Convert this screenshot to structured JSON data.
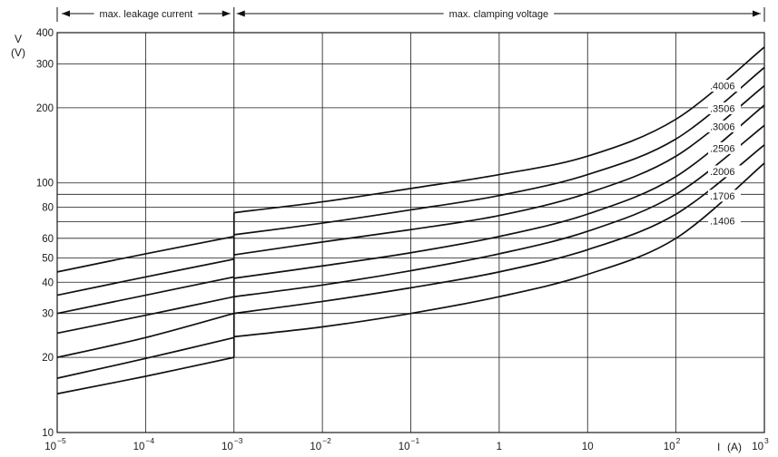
{
  "chart_data": {
    "type": "line",
    "x_scale": "log",
    "y_scale": "log",
    "xlim": [
      1e-05,
      1000
    ],
    "ylim": [
      10,
      400
    ],
    "ylabel": "V",
    "ylabel_unit": "(V)",
    "xlabel": "I",
    "xlabel_unit": "(A)",
    "region_labels": [
      {
        "label": "max. leakage current",
        "from": 1e-05,
        "to": 0.001
      },
      {
        "label": "max. clamping voltage",
        "from": 0.001,
        "to": 1000
      }
    ],
    "x_ticks": [
      {
        "value": 1e-05,
        "base": "10",
        "exp": "−5"
      },
      {
        "value": 0.0001,
        "base": "10",
        "exp": "−4"
      },
      {
        "value": 0.001,
        "base": "10",
        "exp": "−3"
      },
      {
        "value": 0.01,
        "base": "10",
        "exp": "−2"
      },
      {
        "value": 0.1,
        "base": "10",
        "exp": "−1"
      },
      {
        "value": 1,
        "base": "1",
        "exp": ""
      },
      {
        "value": 10,
        "base": "10",
        "exp": ""
      },
      {
        "value": 100,
        "base": "10",
        "exp": "2"
      },
      {
        "value": 1000,
        "base": "10",
        "exp": "3"
      }
    ],
    "y_ticks": [
      {
        "value": 10,
        "label": "10"
      },
      {
        "value": 20,
        "label": "20"
      },
      {
        "value": 30,
        "label": "30"
      },
      {
        "value": 40,
        "label": "40"
      },
      {
        "value": 50,
        "label": "50"
      },
      {
        "value": 60,
        "label": "60"
      },
      {
        "value": 80,
        "label": "80"
      },
      {
        "value": 100,
        "label": "100"
      },
      {
        "value": 200,
        "label": "200"
      },
      {
        "value": 300,
        "label": "300"
      },
      {
        "value": 400,
        "label": "400"
      }
    ],
    "y_gridlines": [
      10,
      20,
      30,
      40,
      50,
      60,
      70,
      80,
      90,
      100,
      200,
      300,
      400
    ],
    "series": [
      {
        "name": ".4006",
        "leakage": [
          [
            1e-05,
            44
          ],
          [
            0.0001,
            52
          ],
          [
            0.001,
            61
          ]
        ],
        "clamping": [
          [
            0.001,
            76
          ],
          [
            0.01,
            84
          ],
          [
            0.1,
            95
          ],
          [
            1,
            108
          ],
          [
            10,
            128
          ],
          [
            100,
            180
          ],
          [
            1000,
            350
          ]
        ]
      },
      {
        "name": ".3506",
        "leakage": [
          [
            1e-05,
            35.5
          ],
          [
            0.0001,
            42
          ],
          [
            0.001,
            49.5
          ]
        ],
        "clamping": [
          [
            0.001,
            62
          ],
          [
            0.01,
            69
          ],
          [
            0.1,
            78
          ],
          [
            1,
            89
          ],
          [
            10,
            108
          ],
          [
            100,
            150
          ],
          [
            1000,
            290
          ]
        ]
      },
      {
        "name": ".3006",
        "leakage": [
          [
            1e-05,
            30
          ],
          [
            0.0001,
            35.5
          ],
          [
            0.001,
            42
          ]
        ],
        "clamping": [
          [
            0.001,
            51.5
          ],
          [
            0.01,
            58
          ],
          [
            0.1,
            65
          ],
          [
            1,
            74
          ],
          [
            10,
            91
          ],
          [
            100,
            128
          ],
          [
            1000,
            245
          ]
        ]
      },
      {
        "name": ".2506",
        "leakage": [
          [
            1e-05,
            25
          ],
          [
            0.0001,
            29.5
          ],
          [
            0.001,
            35
          ]
        ],
        "clamping": [
          [
            0.001,
            41.5
          ],
          [
            0.01,
            46.5
          ],
          [
            0.1,
            52.5
          ],
          [
            1,
            61
          ],
          [
            10,
            75
          ],
          [
            100,
            106
          ],
          [
            1000,
            205
          ]
        ]
      },
      {
        "name": ".2006",
        "leakage": [
          [
            1e-05,
            20
          ],
          [
            0.0001,
            24
          ],
          [
            0.001,
            30
          ]
        ],
        "clamping": [
          [
            0.001,
            35
          ],
          [
            0.01,
            39
          ],
          [
            0.1,
            44.5
          ],
          [
            1,
            52
          ],
          [
            10,
            64
          ],
          [
            100,
            90
          ],
          [
            1000,
            170
          ]
        ]
      },
      {
        "name": ".1706",
        "leakage": [
          [
            1e-05,
            16.5
          ],
          [
            0.0001,
            19.8
          ],
          [
            0.001,
            24
          ]
        ],
        "clamping": [
          [
            0.001,
            30
          ],
          [
            0.01,
            33.5
          ],
          [
            0.1,
            38
          ],
          [
            1,
            44
          ],
          [
            10,
            54
          ],
          [
            100,
            75
          ],
          [
            1000,
            142
          ]
        ]
      },
      {
        "name": ".1406",
        "leakage": [
          [
            1e-05,
            14.3
          ],
          [
            0.0001,
            16.8
          ],
          [
            0.001,
            20
          ]
        ],
        "clamping": [
          [
            0.001,
            24.2
          ],
          [
            0.01,
            26.5
          ],
          [
            0.1,
            30
          ],
          [
            1,
            35
          ],
          [
            10,
            43
          ],
          [
            100,
            60
          ],
          [
            1000,
            120
          ]
        ]
      }
    ],
    "curve_label_values": [
      {
        "name": ".4006",
        "y": 240
      },
      {
        "name": ".3506",
        "y": 195
      },
      {
        "name": ".3006",
        "y": 165
      },
      {
        "name": ".2506",
        "y": 135
      },
      {
        "name": ".2006",
        "y": 109
      },
      {
        "name": ".1706",
        "y": 87
      },
      {
        "name": ".1406",
        "y": 69
      }
    ]
  }
}
